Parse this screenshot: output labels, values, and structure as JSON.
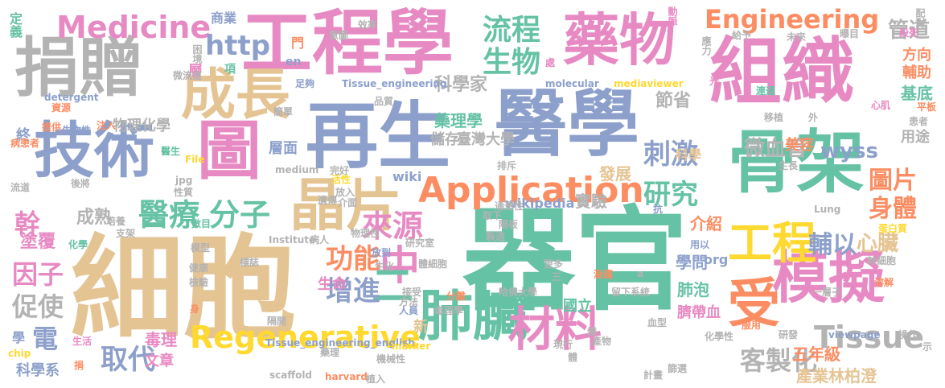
{
  "palette": {
    "green": "#66c2a5",
    "orange": "#fc8d62",
    "blue": "#8da0cb",
    "pink": "#e78ac3",
    "lime": "#a6d854",
    "yellow": "#ffd92f",
    "tan": "#e5c494",
    "gray": "#b3b3b3"
  },
  "words": [
    {
      "text": "細胞",
      "color": "#e5c494"
    },
    {
      "text": "器官",
      "color": "#66c2a5"
    },
    {
      "text": "醫學",
      "color": "#8da0cb"
    },
    {
      "text": "再生",
      "color": "#8da0cb"
    },
    {
      "text": "組織",
      "color": "#e78ac3"
    },
    {
      "text": "工程學",
      "color": "#e78ac3"
    },
    {
      "text": "捐贈",
      "color": "#b3b3b3"
    },
    {
      "text": "技術",
      "color": "#8da0cb"
    },
    {
      "text": "骨架",
      "color": "#66c2a5"
    },
    {
      "text": "藥物",
      "color": "#e78ac3"
    },
    {
      "text": "晶片",
      "color": "#e5c494"
    },
    {
      "text": "模擬",
      "color": "#e78ac3"
    },
    {
      "text": "受",
      "color": "#fc8d62"
    },
    {
      "text": "圖",
      "color": "#e78ac3"
    },
    {
      "text": "肺臟",
      "color": "#66c2a5"
    },
    {
      "text": "成長",
      "color": "#e5c494"
    },
    {
      "text": "材料",
      "color": "#e78ac3"
    },
    {
      "text": "工程",
      "color": "#ffd92f"
    },
    {
      "text": "Medicine",
      "color": "#e78ac3"
    },
    {
      "text": "Application",
      "color": "#fc8d62"
    },
    {
      "text": "Regenerative",
      "color": "#ffd92f"
    },
    {
      "text": "Engineering",
      "color": "#fc8d62"
    },
    {
      "text": "Tissue",
      "color": "#b3b3b3"
    },
    {
      "text": "中",
      "color": "#e78ac3"
    },
    {
      "text": "二",
      "color": "#66c2a5"
    },
    {
      "text": "生物",
      "color": "#66c2a5"
    },
    {
      "text": "流程",
      "color": "#66c2a5"
    },
    {
      "text": "來源",
      "color": "#e78ac3"
    },
    {
      "text": "醫療",
      "color": "#66c2a5"
    },
    {
      "text": "刺激",
      "color": "#8da0cb"
    },
    {
      "text": "研究",
      "color": "#66c2a5"
    },
    {
      "text": "圖片",
      "color": "#fc8d62"
    },
    {
      "text": "身體",
      "color": "#fc8d62"
    },
    {
      "text": "分子",
      "color": "#66c2a5"
    },
    {
      "text": "功能",
      "color": "#fc8d62"
    },
    {
      "text": "增進",
      "color": "#8da0cb"
    },
    {
      "text": "輔以",
      "color": "#8da0cb"
    },
    {
      "text": "心臟",
      "color": "#e5c494"
    },
    {
      "text": "因子",
      "color": "#e78ac3"
    },
    {
      "text": "促使",
      "color": "#b3b3b3"
    },
    {
      "text": "取代",
      "color": "#8da0cb"
    },
    {
      "text": "客製化",
      "color": "#b3b3b3"
    },
    {
      "text": "幹",
      "color": "#e78ac3"
    },
    {
      "text": "電",
      "color": "#8da0cb"
    },
    {
      "text": "http",
      "color": "#8da0cb"
    },
    {
      "text": "管道",
      "color": "#b3b3b3"
    },
    {
      "text": "方向",
      "color": "#fc8d62"
    },
    {
      "text": "輔助",
      "color": "#fc8d62"
    },
    {
      "text": "基底",
      "color": "#66c2a5"
    },
    {
      "text": "微血管",
      "color": "#b3b3b3"
    },
    {
      "text": "wyss",
      "color": "#8da0cb"
    },
    {
      "text": "用途",
      "color": "#b3b3b3"
    },
    {
      "text": "美容",
      "color": "#fc8d62"
    },
    {
      "text": "科學家",
      "color": "#b3b3b3"
    },
    {
      "text": "節省",
      "color": "#b3b3b3"
    },
    {
      "text": "成熟",
      "color": "#b3b3b3"
    },
    {
      "text": "塗覆",
      "color": "#e78ac3"
    },
    {
      "text": "藥理學",
      "color": "#66c2a5"
    },
    {
      "text": "儲存",
      "color": "#b3b3b3"
    },
    {
      "text": "臺灣大學",
      "color": "#b3b3b3"
    },
    {
      "text": "物理化學",
      "color": "#b3b3b3"
    },
    {
      "text": "層面",
      "color": "#8da0cb"
    },
    {
      "text": "發展",
      "color": "#e5c494"
    },
    {
      "text": "實驗",
      "color": "#b3b3b3"
    },
    {
      "text": "介紹",
      "color": "#fc8d62"
    },
    {
      "text": "學問",
      "color": "#8da0cb"
    },
    {
      "text": "肺泡",
      "color": "#66c2a5"
    },
    {
      "text": "臍帶血",
      "color": "#e78ac3"
    },
    {
      "text": "五年級",
      "color": "#fc8d62"
    },
    {
      "text": "產業林柏澄",
      "color": "#e5c494"
    },
    {
      "text": "生命",
      "color": "#e78ac3"
    },
    {
      "text": "國立",
      "color": "#66c2a5"
    },
    {
      "text": "新",
      "color": "#e5c494"
    },
    {
      "text": "毒理",
      "color": "#e78ac3"
    },
    {
      "text": "文章",
      "color": "#e78ac3"
    },
    {
      "text": "科學系",
      "color": "#8da0cb"
    },
    {
      "text": "學",
      "color": "#8da0cb"
    },
    {
      "text": "終",
      "color": "#8da0cb"
    },
    {
      "text": "層",
      "color": "#e78ac3"
    },
    {
      "text": "門",
      "color": "#fc8d62"
    },
    {
      "text": "項",
      "color": "#66c2a5"
    },
    {
      "text": "en",
      "color": "#8da0cb"
    },
    {
      "text": "商業",
      "color": "#8da0cb"
    },
    {
      "text": "定義",
      "color": "#66c2a5"
    },
    {
      "text": "科學",
      "color": "#e5c494"
    },
    {
      "text": "org",
      "color": "#8da0cb"
    },
    {
      "text": "wiki",
      "color": "#8da0cb"
    },
    {
      "text": "wikipedia",
      "color": "#8da0cb"
    },
    {
      "text": "Tissue_engineering",
      "color": "#8da0cb"
    },
    {
      "text": "Tissue_engineering_english",
      "color": "#8da0cb"
    },
    {
      "text": "molecular",
      "color": "#8da0cb"
    },
    {
      "text": "mediaviewer",
      "color": "#ffd92f"
    },
    {
      "text": "detergent",
      "color": "#8da0cb"
    },
    {
      "text": "medium",
      "color": "#b3b3b3"
    },
    {
      "text": "scaffold",
      "color": "#b3b3b3"
    },
    {
      "text": "harvard",
      "color": "#fc8d62"
    },
    {
      "text": "viewpage",
      "color": "#8da0cb"
    },
    {
      "text": "Institute",
      "color": "#b3b3b3"
    },
    {
      "text": "marker",
      "color": "#ffd92f"
    },
    {
      "text": "chip",
      "color": "#ffd92f"
    },
    {
      "text": "jpg",
      "color": "#b3b3b3"
    },
    {
      "text": "File",
      "color": "#ffd92f"
    },
    {
      "text": "Lung",
      "color": "#b3b3b3"
    },
    {
      "text": "效率",
      "color": "#b3b3b3"
    },
    {
      "text": "意圖",
      "color": "#b3b3b3"
    },
    {
      "text": "動脈",
      "color": "#e78ac3"
    },
    {
      "text": "配對",
      "color": "#b3b3b3"
    },
    {
      "text": "給予",
      "color": "#b3b3b3"
    },
    {
      "text": "未來",
      "color": "#b3b3b3"
    },
    {
      "text": "應力",
      "color": "#b3b3b3"
    },
    {
      "text": "殺死",
      "color": "#e78ac3"
    },
    {
      "text": "曝目",
      "color": "#b3b3b3"
    },
    {
      "text": "困境",
      "color": "#b3b3b3"
    },
    {
      "text": "微流道",
      "color": "#b3b3b3"
    },
    {
      "text": "資源",
      "color": "#fc8d62"
    },
    {
      "text": "提供",
      "color": "#fc8d62"
    },
    {
      "text": "生物性",
      "color": "#8da0cb"
    },
    {
      "text": "病患者",
      "color": "#fc8d62"
    },
    {
      "text": "流道",
      "color": "#b3b3b3"
    },
    {
      "text": "後將",
      "color": "#b3b3b3"
    },
    {
      "text": "醫生",
      "color": "#66c2a5"
    },
    {
      "text": "簡單",
      "color": "#b3b3b3"
    },
    {
      "text": "注入",
      "color": "#fc8d62"
    },
    {
      "text": "足夠",
      "color": "#8da0cb"
    },
    {
      "text": "品質",
      "color": "#b3b3b3"
    },
    {
      "text": "光",
      "color": "#e78ac3"
    },
    {
      "text": "連通",
      "color": "#66c2a5"
    },
    {
      "text": "平板",
      "color": "#fc8d62"
    },
    {
      "text": "移植",
      "color": "#b3b3b3"
    },
    {
      "text": "外",
      "color": "#b3b3b3"
    },
    {
      "text": "心肌",
      "color": "#e78ac3"
    },
    {
      "text": "患者",
      "color": "#b3b3b3"
    },
    {
      "text": "生長",
      "color": "#b3b3b3"
    },
    {
      "text": "抗",
      "color": "#8da0cb"
    },
    {
      "text": "蛋白質",
      "color": "#ffd92f"
    },
    {
      "text": "用以",
      "color": "#8da0cb"
    },
    {
      "text": "幹細胞",
      "color": "#b3b3b3"
    },
    {
      "text": "溶解",
      "color": "#fc8d62"
    },
    {
      "text": "一層子",
      "color": "#b3b3b3"
    },
    {
      "text": "化學",
      "color": "#66c2a5"
    },
    {
      "text": "數目",
      "color": "#66c2a5"
    },
    {
      "text": "模型",
      "color": "#b3b3b3"
    },
    {
      "text": "健康",
      "color": "#b3b3b3"
    },
    {
      "text": "檢驗",
      "color": "#b3b3b3"
    },
    {
      "text": "標誌",
      "color": "#b3b3b3"
    },
    {
      "text": "病人",
      "color": "#b3b3b3"
    },
    {
      "text": "身",
      "color": "#fc8d62"
    },
    {
      "text": "隔開",
      "color": "#b3b3b3"
    },
    {
      "text": "生活",
      "color": "#e78ac3"
    },
    {
      "text": "捐",
      "color": "#fc8d62"
    },
    {
      "text": "培養",
      "color": "#b3b3b3"
    },
    {
      "text": "支架",
      "color": "#b3b3b3"
    },
    {
      "text": "物理性",
      "color": "#b3b3b3"
    },
    {
      "text": "研究室",
      "color": "#b3b3b3"
    },
    {
      "text": "體細胞",
      "color": "#b3b3b3"
    },
    {
      "text": "放到",
      "color": "#8da0cb"
    },
    {
      "text": "生化",
      "color": "#b3b3b3"
    },
    {
      "text": "接受",
      "color": "#b3b3b3"
    },
    {
      "text": "方法",
      "color": "#b3b3b3"
    },
    {
      "text": "人員",
      "color": "#8da0cb"
    },
    {
      "text": "分離",
      "color": "#fc8d62"
    },
    {
      "text": "哈佛大學",
      "color": "#b3b3b3"
    },
    {
      "text": "毒理學",
      "color": "#b3b3b3"
    },
    {
      "text": "留下系統",
      "color": "#b3b3b3"
    },
    {
      "text": "漸趨",
      "color": "#fc8d62"
    },
    {
      "text": "血型",
      "color": "#b3b3b3"
    },
    {
      "text": "化學性",
      "color": "#b3b3b3"
    },
    {
      "text": "研發",
      "color": "#b3b3b3"
    },
    {
      "text": "服用",
      "color": "#fc8d62"
    },
    {
      "text": "操作",
      "color": "#b3b3b3"
    },
    {
      "text": "示",
      "color": "#b3b3b3"
    },
    {
      "text": "篩選",
      "color": "#b3b3b3"
    },
    {
      "text": "計畫",
      "color": "#b3b3b3"
    },
    {
      "text": "植入",
      "color": "#b3b3b3"
    },
    {
      "text": "機械性",
      "color": "#b3b3b3"
    },
    {
      "text": "藥理",
      "color": "#b3b3b3"
    },
    {
      "text": "產物",
      "color": "#b3b3b3"
    },
    {
      "text": "現行",
      "color": "#b3b3b3"
    },
    {
      "text": "燒",
      "color": "#b3b3b3"
    },
    {
      "text": "體",
      "color": "#b3b3b3"
    },
    {
      "text": "更多",
      "color": "#b3b3b3"
    },
    {
      "text": "三",
      "color": "#b3b3b3"
    },
    {
      "text": "製造",
      "color": "#b3b3b3"
    },
    {
      "text": "隔板",
      "color": "#b3b3b3"
    },
    {
      "text": "取下",
      "color": "#b3b3b3"
    },
    {
      "text": "通透性",
      "color": "#b3b3b3"
    },
    {
      "text": "排斥",
      "color": "#b3b3b3"
    },
    {
      "text": "遺傳",
      "color": "#b3b3b3"
    },
    {
      "text": "活性",
      "color": "#ffd92f"
    },
    {
      "text": "放入",
      "color": "#b3b3b3"
    },
    {
      "text": "完好",
      "color": "#b3b3b3"
    },
    {
      "text": "介面",
      "color": "#b3b3b3"
    },
    {
      "text": "性質",
      "color": "#b3b3b3"
    },
    {
      "text": "處",
      "color": "#e78ac3"
    },
    {
      "text": "a",
      "color": "#b3b3b3"
    }
  ]
}
